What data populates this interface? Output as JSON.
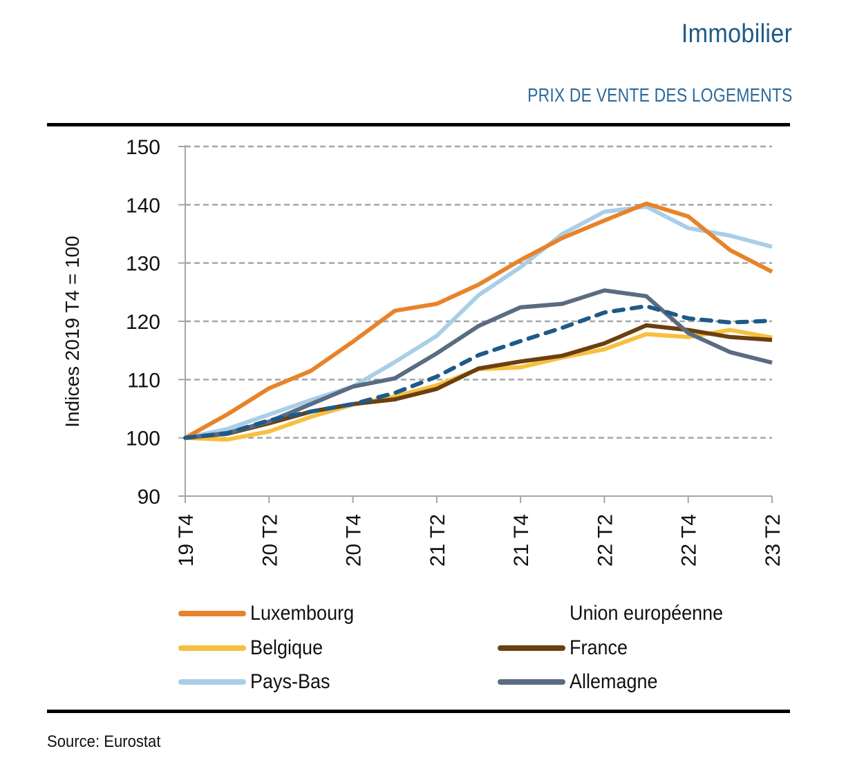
{
  "header": {
    "title": "Immobilier",
    "subtitle": "PRIX DE VENTE DES LOGEMENTS"
  },
  "footer": {
    "source": "Source: Eurostat"
  },
  "chart_data": {
    "type": "line",
    "title": "PRIX DE VENTE DES LOGEMENTS",
    "xlabel": "",
    "ylabel": "Indices 2019 T4 = 100",
    "ylim": [
      90,
      150
    ],
    "yticks": [
      90,
      100,
      110,
      120,
      130,
      140,
      150
    ],
    "grid": true,
    "legend_position": "bottom",
    "x": [
      "19 T4",
      "20 T1",
      "20 T2",
      "20 T3",
      "20 T4",
      "21 T1",
      "21 T2",
      "21 T3",
      "21 T4",
      "22 T1",
      "22 T2",
      "22 T3",
      "22 T4",
      "23 T1",
      "23 T2"
    ],
    "xtick_labels": [
      "19 T4",
      "20 T2",
      "20 T4",
      "21 T2",
      "21 T4",
      "22 T2",
      "22 T4",
      "23 T2"
    ],
    "series": [
      {
        "name": "Luxembourg",
        "color": "#e8832a",
        "dashed": false,
        "values": [
          100,
          104,
          108.5,
          111.5,
          116.5,
          121.8,
          123,
          126.3,
          130.5,
          134.3,
          137.3,
          140.2,
          138,
          132.2,
          128.5
        ]
      },
      {
        "name": "Union européenne",
        "color": "#1f5a87",
        "dashed": true,
        "values": [
          100,
          100.8,
          103,
          104.5,
          105.8,
          107.7,
          110.5,
          114.2,
          116.6,
          118.9,
          121.5,
          122.6,
          120.5,
          119.8,
          120.1
        ]
      },
      {
        "name": "Belgique",
        "color": "#f6c03f",
        "dashed": false,
        "values": [
          100,
          99.7,
          101.1,
          103.6,
          105.7,
          107.1,
          109,
          111.8,
          112.1,
          113.8,
          115.2,
          117.8,
          117.3,
          118.5,
          117.2
        ]
      },
      {
        "name": "France",
        "color": "#6b3f10",
        "dashed": false,
        "values": [
          100,
          100.7,
          102.5,
          104.5,
          105.8,
          106.6,
          108.4,
          111.9,
          113.1,
          114.1,
          116.2,
          119.3,
          118.5,
          117.3,
          116.8
        ]
      },
      {
        "name": "Pays-Bas",
        "color": "#a9cfe8",
        "dashed": false,
        "values": [
          100,
          101.5,
          104,
          106.5,
          108.8,
          113,
          117.5,
          124.5,
          129.3,
          135,
          138.8,
          139.7,
          136,
          134.7,
          132.8
        ]
      },
      {
        "name": "Allemagne",
        "color": "#5a6b82",
        "dashed": false,
        "values": [
          100,
          100.8,
          102.8,
          105.8,
          108.8,
          110.2,
          114.5,
          119.2,
          122.4,
          123,
          125.3,
          124.3,
          118,
          114.7,
          112.9
        ]
      }
    ]
  }
}
